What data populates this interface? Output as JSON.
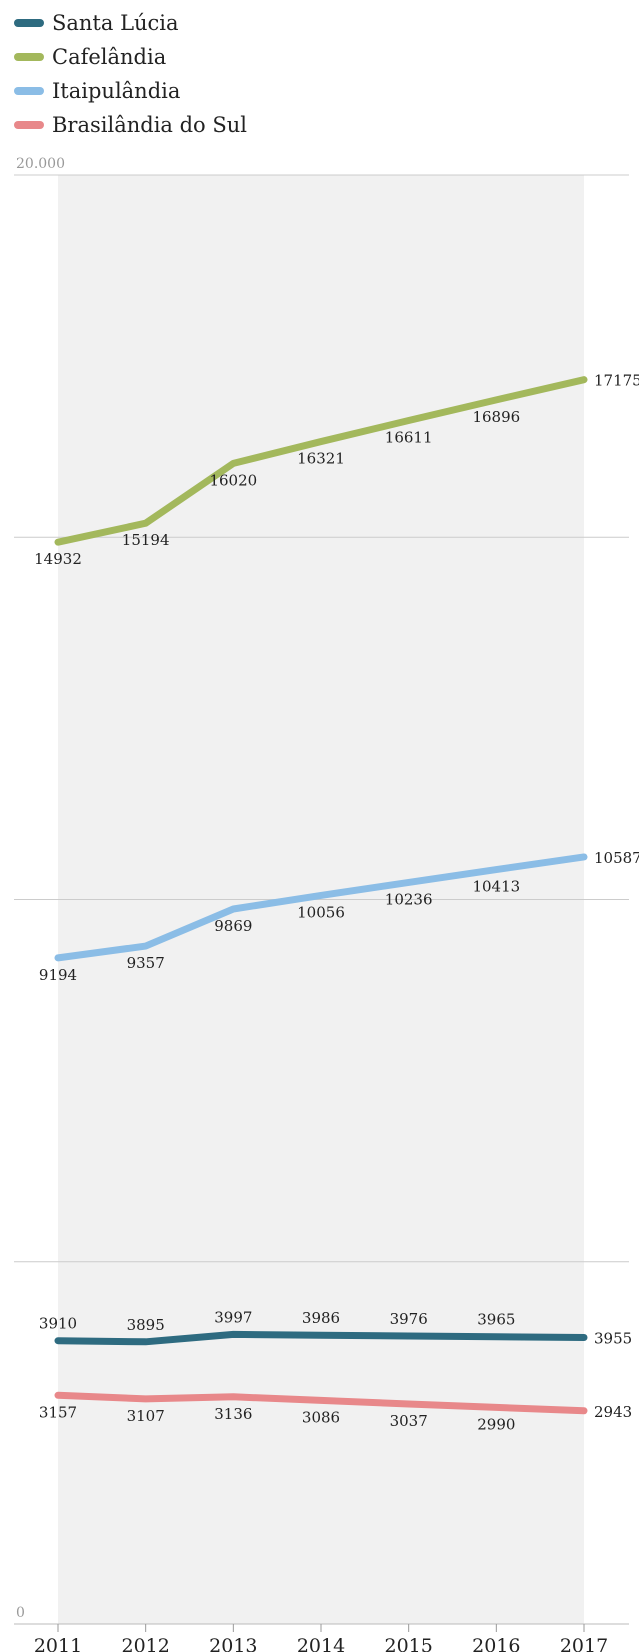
{
  "chart_data": {
    "type": "line",
    "x": [
      "2011",
      "2012",
      "2013",
      "2014",
      "2015",
      "2016",
      "2017"
    ],
    "ylim": [
      0,
      20000
    ],
    "y_ticks": [
      0,
      5000,
      10000,
      15000,
      20000
    ],
    "y_tick_labels": [
      "0",
      "",
      "",
      "",
      "20.000"
    ],
    "grid": true,
    "legend_position": "top-left",
    "series": [
      {
        "name": "Santa Lúcia",
        "color": "#2e6b80",
        "values": [
          3910,
          3895,
          3997,
          3986,
          3976,
          3965,
          3955
        ]
      },
      {
        "name": "Cafelândia",
        "color": "#a3b85c",
        "values": [
          14932,
          15194,
          16020,
          16321,
          16611,
          16896,
          17175
        ]
      },
      {
        "name": "Itaipulândia",
        "color": "#8bbde6",
        "values": [
          9194,
          9357,
          9869,
          10056,
          10236,
          10413,
          10587
        ]
      },
      {
        "name": "Brasilândia do Sul",
        "color": "#e8888a",
        "values": [
          3157,
          3107,
          3136,
          3086,
          3037,
          2990,
          2943
        ]
      }
    ]
  }
}
